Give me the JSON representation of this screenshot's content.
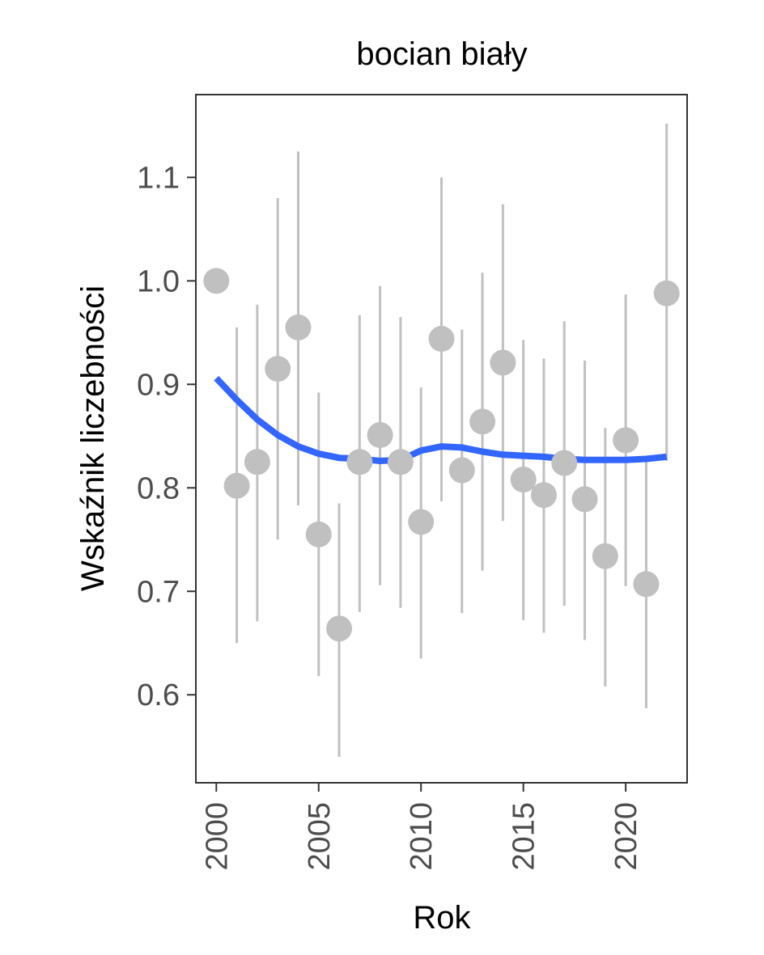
{
  "chart_data": {
    "type": "scatter",
    "title": "bocian biały",
    "xlabel": "Rok",
    "ylabel": "Wskaźnik liczebności",
    "xlim": [
      1999,
      2023
    ],
    "ylim": [
      0.515,
      1.18
    ],
    "xticks": [
      2000,
      2005,
      2010,
      2015,
      2020
    ],
    "yticks": [
      0.6,
      0.7,
      0.8,
      0.9,
      1.0,
      1.1
    ],
    "ytick_labels": [
      "0.6",
      "0.7",
      "0.8",
      "0.9",
      "1.0",
      "1.1"
    ],
    "grid": false,
    "colors": {
      "points": "#c0c0c0",
      "errorbars": "#c0c0c0",
      "trend": "#3366ff",
      "frame": "#333333"
    },
    "series": [
      {
        "kind": "points-with-errorbars",
        "x": [
          2000,
          2001,
          2002,
          2003,
          2004,
          2005,
          2006,
          2007,
          2008,
          2009,
          2010,
          2011,
          2012,
          2013,
          2014,
          2015,
          2016,
          2017,
          2018,
          2019,
          2020,
          2021,
          2022
        ],
        "y": [
          1.0,
          0.802,
          0.825,
          0.915,
          0.955,
          0.755,
          0.664,
          0.825,
          0.851,
          0.825,
          0.767,
          0.944,
          0.817,
          0.864,
          0.921,
          0.808,
          0.793,
          0.824,
          0.789,
          0.734,
          0.846,
          0.707,
          0.988
        ],
        "lower": [
          null,
          0.65,
          0.671,
          0.75,
          0.783,
          0.618,
          0.54,
          0.68,
          0.706,
          0.684,
          0.635,
          0.787,
          0.679,
          0.72,
          0.768,
          0.672,
          0.66,
          0.686,
          0.653,
          0.608,
          0.705,
          0.587,
          0.826
        ],
        "upper": [
          null,
          0.955,
          0.977,
          1.08,
          1.125,
          0.892,
          0.785,
          0.967,
          0.995,
          0.965,
          0.897,
          1.1,
          0.953,
          1.008,
          1.074,
          0.943,
          0.925,
          0.961,
          0.923,
          0.858,
          0.987,
          0.827,
          1.152
        ]
      },
      {
        "kind": "trend-line",
        "x": [
          2000,
          2001,
          2002,
          2003,
          2004,
          2005,
          2006,
          2007,
          2008,
          2009,
          2010,
          2011,
          2012,
          2013,
          2014,
          2015,
          2016,
          2017,
          2018,
          2019,
          2020,
          2021,
          2022
        ],
        "y": [
          0.906,
          0.885,
          0.866,
          0.851,
          0.84,
          0.833,
          0.829,
          0.828,
          0.826,
          0.827,
          0.836,
          0.84,
          0.839,
          0.835,
          0.832,
          0.831,
          0.83,
          0.828,
          0.827,
          0.827,
          0.827,
          0.828,
          0.83
        ]
      }
    ]
  }
}
